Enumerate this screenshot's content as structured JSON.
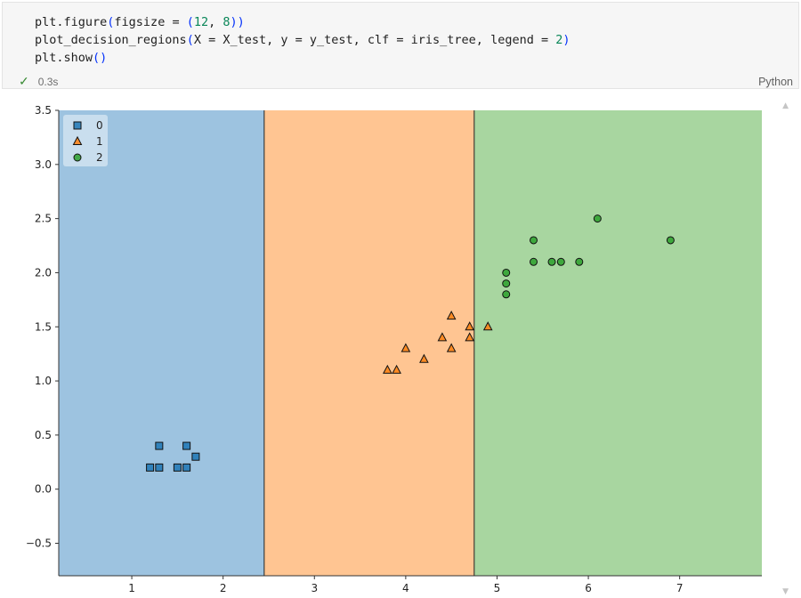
{
  "cell": {
    "code_lines": [
      [
        {
          "t": "plt.figure"
        },
        {
          "t": "(",
          "c": "paren"
        },
        {
          "t": "figsize = "
        },
        {
          "t": "(",
          "c": "paren"
        },
        {
          "t": "12",
          "c": "num"
        },
        {
          "t": ", "
        },
        {
          "t": "8",
          "c": "num"
        },
        {
          "t": ")",
          "c": "paren"
        },
        {
          "t": ")",
          "c": "paren"
        }
      ],
      [
        {
          "t": "plot_decision_regions"
        },
        {
          "t": "(",
          "c": "paren"
        },
        {
          "t": "X = X_test, y = y_test, clf = iris_tree, legend = "
        },
        {
          "t": "2",
          "c": "num"
        },
        {
          "t": ")",
          "c": "paren"
        }
      ],
      [
        {
          "t": "plt.show"
        },
        {
          "t": "()",
          "c": "paren"
        }
      ]
    ],
    "status_check": "✓",
    "exec_time": "0.3s",
    "language": "Python"
  },
  "chart_data": {
    "type": "scatter",
    "title": "",
    "xlabel": "",
    "ylabel": "",
    "xlim": [
      0.2,
      7.9
    ],
    "ylim": [
      -0.8,
      3.5
    ],
    "xticks": [
      "1",
      "2",
      "3",
      "4",
      "5",
      "6",
      "7"
    ],
    "xtick_values": [
      1,
      2,
      3,
      4,
      5,
      6,
      7
    ],
    "yticks": [
      "−0.5",
      "0.0",
      "0.5",
      "1.0",
      "1.5",
      "2.0",
      "2.5",
      "3.0",
      "3.5"
    ],
    "ytick_values": [
      -0.5,
      0.0,
      0.5,
      1.0,
      1.5,
      2.0,
      2.5,
      3.0,
      3.5
    ],
    "grid": false,
    "legend_position": "top-left",
    "decision_boundaries_x": [
      2.45,
      4.75
    ],
    "regions": [
      {
        "class": "0",
        "x_range": [
          0.2,
          2.45
        ],
        "color": "#9dc3e0"
      },
      {
        "class": "1",
        "x_range": [
          2.45,
          4.75
        ],
        "color": "#ffc592"
      },
      {
        "class": "2",
        "x_range": [
          4.75,
          7.9
        ],
        "color": "#a8d6a0"
      }
    ],
    "series": [
      {
        "name": "0",
        "marker": "square",
        "color": "#1f77b4",
        "points": [
          [
            1.2,
            0.2
          ],
          [
            1.3,
            0.2
          ],
          [
            1.3,
            0.4
          ],
          [
            1.5,
            0.2
          ],
          [
            1.6,
            0.2
          ],
          [
            1.6,
            0.4
          ],
          [
            1.7,
            0.3
          ]
        ]
      },
      {
        "name": "1",
        "marker": "triangle",
        "color": "#ff7f0e",
        "points": [
          [
            3.8,
            1.1
          ],
          [
            3.9,
            1.1
          ],
          [
            4.0,
            1.3
          ],
          [
            4.2,
            1.2
          ],
          [
            4.4,
            1.4
          ],
          [
            4.5,
            1.3
          ],
          [
            4.5,
            1.6
          ],
          [
            4.7,
            1.4
          ],
          [
            4.7,
            1.5
          ],
          [
            4.9,
            1.5
          ]
        ]
      },
      {
        "name": "2",
        "marker": "circle",
        "color": "#2ca02c",
        "points": [
          [
            5.1,
            1.8
          ],
          [
            5.1,
            1.9
          ],
          [
            5.1,
            2.0
          ],
          [
            5.4,
            2.1
          ],
          [
            5.4,
            2.3
          ],
          [
            5.6,
            2.1
          ],
          [
            5.7,
            2.1
          ],
          [
            5.9,
            2.1
          ],
          [
            6.1,
            2.5
          ],
          [
            6.9,
            2.3
          ]
        ]
      }
    ]
  }
}
